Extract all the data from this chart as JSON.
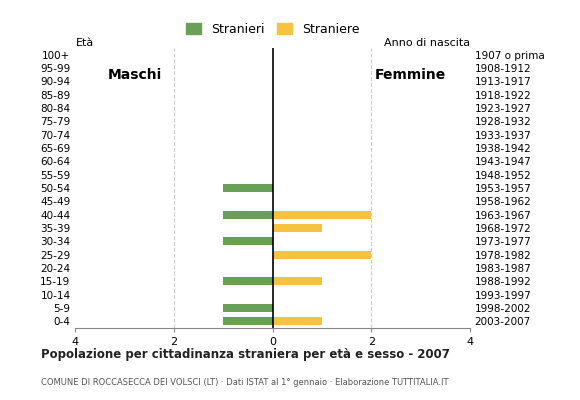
{
  "age_groups": [
    "100+",
    "95-99",
    "90-94",
    "85-89",
    "80-84",
    "75-79",
    "70-74",
    "65-69",
    "60-64",
    "55-59",
    "50-54",
    "45-49",
    "40-44",
    "35-39",
    "30-34",
    "25-29",
    "20-24",
    "15-19",
    "10-14",
    "5-9",
    "0-4"
  ],
  "birth_years": [
    "1907 o prima",
    "1908-1912",
    "1913-1917",
    "1918-1922",
    "1923-1927",
    "1928-1932",
    "1933-1937",
    "1938-1942",
    "1943-1947",
    "1948-1952",
    "1953-1957",
    "1958-1962",
    "1963-1967",
    "1968-1972",
    "1973-1977",
    "1978-1982",
    "1983-1987",
    "1988-1992",
    "1993-1997",
    "1998-2002",
    "2003-2007"
  ],
  "males": [
    0,
    0,
    0,
    0,
    0,
    0,
    0,
    0,
    0,
    0,
    1,
    0,
    1,
    0,
    1,
    0,
    0,
    1,
    0,
    1,
    1
  ],
  "females": [
    0,
    0,
    0,
    0,
    0,
    0,
    0,
    0,
    0,
    0,
    0,
    0,
    2,
    1,
    0,
    2,
    0,
    1,
    0,
    0,
    1
  ],
  "male_color": "#6a9f58",
  "female_color": "#f5c242",
  "title": "Popolazione per cittadinanza straniera per età e sesso - 2007",
  "subtitle": "COMUNE DI ROCCASECCA DEI VOLSCI (LT) · Dati ISTAT al 1° gennaio · Elaborazione TUTTITALIA.IT",
  "legend_male": "Stranieri",
  "legend_female": "Straniere",
  "eta_label": "Età",
  "anno_label": "Anno di nascita",
  "maschi_label": "Maschi",
  "femmine_label": "Femmine",
  "xlim": 4,
  "xticks": [
    -4,
    -2,
    0,
    2,
    4
  ],
  "xticklabels": [
    "4",
    "2",
    "0",
    "2",
    "4"
  ],
  "background_color": "#ffffff",
  "grid_color": "#cccccc"
}
